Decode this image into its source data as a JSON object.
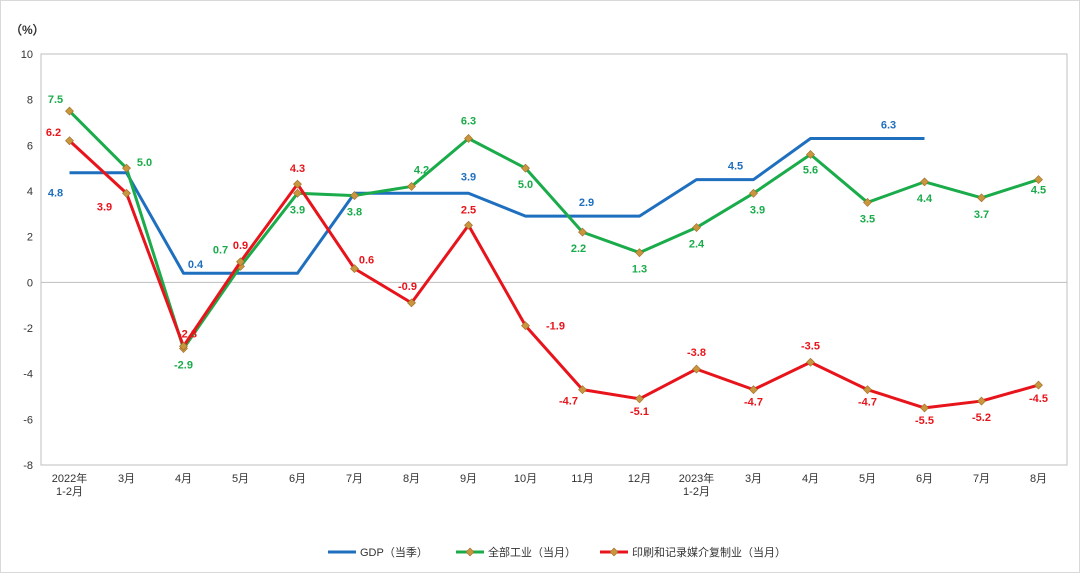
{
  "chart_data": {
    "type": "line",
    "ylabel": "（%）",
    "ylim": [
      -8,
      10
    ],
    "yticks": [
      -8,
      -6,
      -4,
      -2,
      0,
      2,
      4,
      6,
      8,
      10
    ],
    "categories": [
      "2022年\n1-2月",
      "3月",
      "4月",
      "5月",
      "6月",
      "7月",
      "8月",
      "9月",
      "10月",
      "11月",
      "12月",
      "2023年\n1-2月",
      "3月",
      "4月",
      "5月",
      "6月",
      "7月",
      "8月"
    ],
    "grid": false,
    "legend_position": "bottom",
    "series": [
      {
        "name": "GDP（当季）",
        "color": "#1f6fbf",
        "marker": "none",
        "step": "quarter",
        "values": [
          4.8,
          4.8,
          0.4,
          0.4,
          0.4,
          3.9,
          3.9,
          3.9,
          2.9,
          2.9,
          2.9,
          4.5,
          4.5,
          6.3,
          6.3,
          6.3,
          null,
          null
        ],
        "labels": [
          {
            "index": 0,
            "text": "4.8"
          },
          {
            "index": 2,
            "text": "0.4"
          },
          {
            "index": 7,
            "text": "3.9"
          },
          {
            "index": 9,
            "text": "2.9"
          },
          {
            "index": 12,
            "text": "4.5"
          },
          {
            "index": 15,
            "text": "6.3"
          }
        ]
      },
      {
        "name": "全部工业（当月）",
        "color": "#1aab4a",
        "marker": "diamond",
        "values": [
          7.5,
          5.0,
          -2.9,
          0.7,
          3.9,
          3.8,
          4.2,
          6.3,
          5.0,
          2.2,
          1.3,
          2.4,
          3.9,
          5.6,
          3.5,
          4.4,
          3.7,
          4.5
        ],
        "labels": [
          "7.5",
          "5.0",
          "-2.9",
          "0.7",
          "3.9",
          "3.8",
          "4.2",
          "6.3",
          "5.0",
          "2.2",
          "1.3",
          "2.4",
          "3.9",
          "5.6",
          "3.5",
          "4.4",
          "3.7",
          "4.5"
        ]
      },
      {
        "name": "印刷和记录媒介复制业（当月）",
        "color": "#e8141b",
        "marker": "diamond",
        "values": [
          6.2,
          3.9,
          -2.8,
          0.9,
          4.3,
          0.6,
          -0.9,
          2.5,
          -1.9,
          -4.7,
          -5.1,
          -3.8,
          -4.7,
          -3.5,
          -4.7,
          -5.5,
          -5.2,
          -4.5
        ],
        "labels": [
          "6.2",
          "3.9",
          "-2.8",
          "0.9",
          "4.3",
          "0.6",
          "-0.9",
          "2.5",
          "-1.9",
          "-4.7",
          "-5.1",
          "-3.8",
          "-4.7",
          "-3.5",
          "-4.7",
          "-5.5",
          "-5.2",
          "-4.5"
        ]
      }
    ]
  }
}
